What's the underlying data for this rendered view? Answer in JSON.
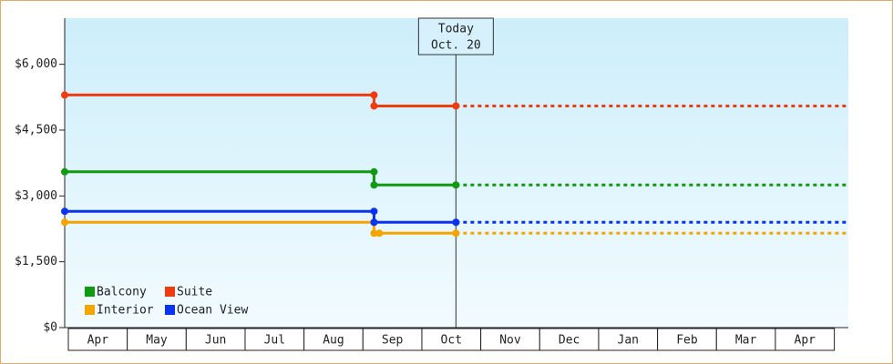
{
  "chart_data": {
    "type": "line",
    "xlim": [
      0,
      13.3
    ],
    "xticks": [
      {
        "value": 0.5,
        "label": "Apr"
      },
      {
        "value": 1.5,
        "label": "May"
      },
      {
        "value": 2.5,
        "label": "Jun"
      },
      {
        "value": 3.5,
        "label": "Jul"
      },
      {
        "value": 4.5,
        "label": "Aug"
      },
      {
        "value": 5.5,
        "label": "Sep"
      },
      {
        "value": 6.5,
        "label": "Oct"
      },
      {
        "value": 7.5,
        "label": "Nov"
      },
      {
        "value": 8.5,
        "label": "Dec"
      },
      {
        "value": 9.5,
        "label": "Jan"
      },
      {
        "value": 10.5,
        "label": "Feb"
      },
      {
        "value": 11.5,
        "label": "Mar"
      },
      {
        "value": 12.5,
        "label": "Apr"
      }
    ],
    "ylim": [
      0,
      7050
    ],
    "yticks": [
      {
        "value": 0,
        "label": "$0"
      },
      {
        "value": 1500,
        "label": "$1,500"
      },
      {
        "value": 3000,
        "label": "$3,000"
      },
      {
        "value": 4500,
        "label": "$4,500"
      },
      {
        "value": 6000,
        "label": "$6,000"
      }
    ],
    "today": {
      "x": 6.64,
      "lines": [
        "Today",
        "Oct. 20"
      ]
    },
    "legend": "lower left",
    "series": [
      {
        "name": "Balcony",
        "color": "#109a10",
        "x": [
          0,
          5.25,
          5.25,
          6.64,
          13.3
        ],
        "values": [
          3550,
          3550,
          3250,
          3250,
          3250
        ]
      },
      {
        "name": "Suite",
        "color": "#f03a10",
        "x": [
          0,
          5.25,
          5.25,
          6.64,
          13.3
        ],
        "values": [
          5300,
          5300,
          5050,
          5050,
          5050
        ]
      },
      {
        "name": "Interior",
        "color": "#f5a400",
        "x": [
          0,
          5.25,
          5.25,
          5.34,
          6.64,
          13.3
        ],
        "values": [
          2400,
          2400,
          2150,
          2150,
          2150,
          2150
        ]
      },
      {
        "name": "Ocean View",
        "color": "#0a32f0",
        "x": [
          0,
          5.25,
          5.25,
          6.64,
          13.3
        ],
        "values": [
          2650,
          2650,
          2400,
          2400,
          2400
        ]
      }
    ]
  }
}
